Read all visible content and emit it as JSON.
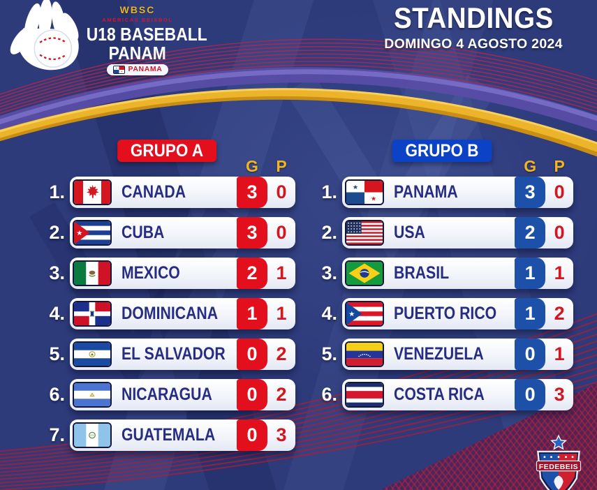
{
  "header": {
    "wbsc": "WBSC",
    "americas": "AMÉRICAS BEISBOL",
    "event_line1": "U18 BASEBALL",
    "event_line2": "PANAM",
    "host": "PANAMA",
    "title": "STANDINGS",
    "date": "DOMINGO 4 AGOSTO 2024"
  },
  "columns": {
    "g": "G",
    "p": "P"
  },
  "groups": [
    {
      "id": "grupo-a",
      "name": "GRUPO A",
      "badge_color": "#e30f1c",
      "box_color": "#e30f1c",
      "teams": [
        {
          "rank": "1.",
          "name": "CANADA",
          "flag": "canada",
          "g": "3",
          "p": "0"
        },
        {
          "rank": "2.",
          "name": "CUBA",
          "flag": "cuba",
          "g": "3",
          "p": "0"
        },
        {
          "rank": "3.",
          "name": "MEXICO",
          "flag": "mexico",
          "g": "2",
          "p": "1"
        },
        {
          "rank": "4.",
          "name": "DOMINICANA",
          "flag": "dominicana",
          "g": "1",
          "p": "1"
        },
        {
          "rank": "5.",
          "name": "EL SALVADOR",
          "flag": "el-salvador",
          "g": "0",
          "p": "2"
        },
        {
          "rank": "6.",
          "name": "NICARAGUA",
          "flag": "nicaragua",
          "g": "0",
          "p": "2"
        },
        {
          "rank": "7.",
          "name": "GUATEMALA",
          "flag": "guatemala",
          "g": "0",
          "p": "3"
        }
      ]
    },
    {
      "id": "grupo-b",
      "name": "GRUPO B",
      "badge_color": "#0b42c6",
      "box_color": "#1d50a8",
      "teams": [
        {
          "rank": "1.",
          "name": "PANAMA",
          "flag": "panama",
          "g": "3",
          "p": "0"
        },
        {
          "rank": "2.",
          "name": "USA",
          "flag": "usa",
          "g": "2",
          "p": "0"
        },
        {
          "rank": "3.",
          "name": "BRASIL",
          "flag": "brasil",
          "g": "1",
          "p": "1"
        },
        {
          "rank": "4.",
          "name": "PUERTO RICO",
          "flag": "puerto-rico",
          "g": "1",
          "p": "2"
        },
        {
          "rank": "5.",
          "name": "VENEZUELA",
          "flag": "venezuela",
          "g": "0",
          "p": "1"
        },
        {
          "rank": "6.",
          "name": "COSTA RICA",
          "flag": "costa-rica",
          "g": "0",
          "p": "3"
        }
      ]
    }
  ],
  "footer": {
    "crest": "FEDEBEIS"
  },
  "colors": {
    "background": "#2d3b7b",
    "red": "#e30f1c",
    "badge_blue": "#0b42c6",
    "box_blue": "#1d50a8",
    "gold": "#f2b51d",
    "team_name": "#272d82",
    "losses_text": "#d5161f"
  }
}
